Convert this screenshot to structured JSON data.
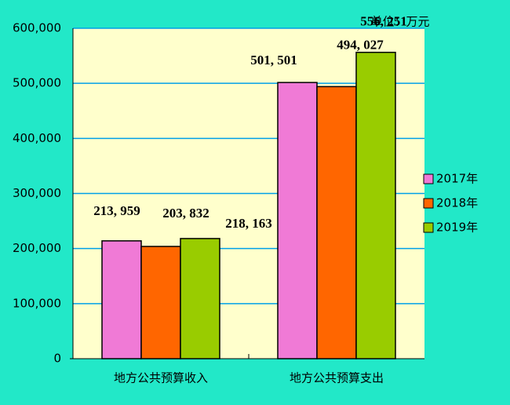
{
  "chart_data": {
    "type": "bar",
    "unit_note": "单位：万元",
    "categories": [
      "地方公共预算收入",
      "地方公共预算支出"
    ],
    "series": [
      {
        "name": "2017年",
        "color": "#f07ad6",
        "values": [
          213959,
          501501
        ],
        "value_labels": [
          "213, 959",
          "501, 501"
        ]
      },
      {
        "name": "2018年",
        "color": "#ff6600",
        "values": [
          203832,
          494027
        ],
        "value_labels": [
          "203, 832",
          "494, 027"
        ]
      },
      {
        "name": "2019年",
        "color": "#99cc00",
        "values": [
          218163,
          556251
        ],
        "value_labels": [
          "218, 163",
          "556, 251"
        ]
      }
    ],
    "ylim": [
      0,
      600000
    ],
    "yticks": [
      0,
      {
        "value": 100000,
        "label": "100,000"
      },
      {
        "value": 200000,
        "label": "200,000"
      },
      {
        "value": 300000,
        "label": "300,000"
      },
      {
        "value": 400000,
        "label": "400,000"
      },
      {
        "value": 500000,
        "label": "500,000"
      },
      {
        "value": 600000,
        "label": "600,000"
      }
    ],
    "grid": true,
    "legend": "right"
  }
}
